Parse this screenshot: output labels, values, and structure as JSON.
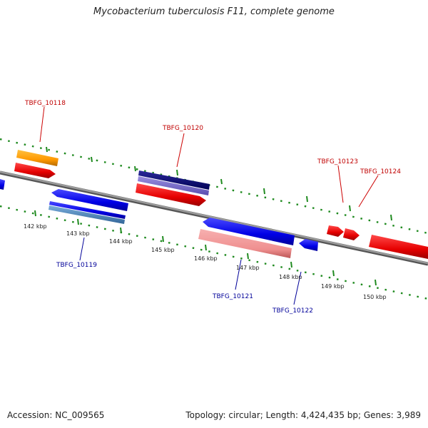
{
  "title": "Mycobacterium tuberculosis F11, complete genome",
  "footer": {
    "accession": "Accession: NC_009565",
    "topology": "Topology: circular; Length: 4,424,435 bp; Genes: 3,989"
  },
  "colors": {
    "backbone": "#8a8a8a",
    "tick": "#1f8a1f",
    "label_forward": "#c00000",
    "label_reverse": "#000099"
  },
  "scale_labels": [
    "142 kbp",
    "143 kbp",
    "144 kbp",
    "145 kbp",
    "146 kbp",
    "147 kbp",
    "148 kbp",
    "149 kbp",
    "150 kbp"
  ],
  "gene_labels": [
    {
      "id": "lbl-10118",
      "text": "TBFG_10118",
      "strand": "forward"
    },
    {
      "id": "lbl-10120",
      "text": "TBFG_10120",
      "strand": "forward"
    },
    {
      "id": "lbl-10123",
      "text": "TBFG_10123",
      "strand": "forward"
    },
    {
      "id": "lbl-10124",
      "text": "TBFG_10124",
      "strand": "forward"
    },
    {
      "id": "lbl-10119",
      "text": "TBFG_10119",
      "strand": "reverse"
    },
    {
      "id": "lbl-10121",
      "text": "TBFG_10121",
      "strand": "reverse"
    },
    {
      "id": "lbl-10122",
      "text": "TBFG_10122",
      "strand": "reverse"
    }
  ]
}
